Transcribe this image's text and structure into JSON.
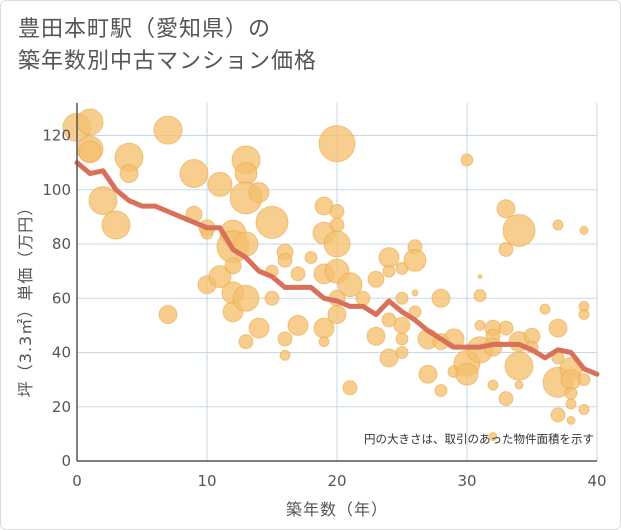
{
  "title_lines": [
    "豊田本町駅（愛知県）の",
    "築年数別中古マンション価格"
  ],
  "colors": {
    "bubble_fill": "#f5c06e",
    "bubble_stroke": "#e9a84a",
    "line": "#d9705a",
    "grid": "#c7d7e6",
    "axis": "#555555",
    "text": "#555555"
  },
  "chart_data": {
    "type": "scatter",
    "title": "豊田本町駅（愛知県）の築年数別中古マンション価格",
    "xlabel": "築年数（年）",
    "ylabel": "坪（3.3㎡）単価（万円）",
    "xlim": [
      0,
      40
    ],
    "ylim": [
      0,
      132
    ],
    "xticks": [
      0,
      10,
      20,
      30,
      40
    ],
    "yticks": [
      0,
      20,
      40,
      60,
      80,
      100,
      120
    ],
    "grid": true,
    "annotation": "円の大きさは、取引のあった物件面積を示す",
    "bubbles": [
      {
        "x": 0,
        "y": 123,
        "s": 14
      },
      {
        "x": 1,
        "y": 125,
        "s": 13
      },
      {
        "x": 1,
        "y": 115,
        "s": 13
      },
      {
        "x": 1,
        "y": 114,
        "s": 11
      },
      {
        "x": 2,
        "y": 96,
        "s": 14
      },
      {
        "x": 3,
        "y": 87,
        "s": 14
      },
      {
        "x": 4,
        "y": 112,
        "s": 14
      },
      {
        "x": 4,
        "y": 106,
        "s": 9
      },
      {
        "x": 7,
        "y": 122,
        "s": 14
      },
      {
        "x": 7,
        "y": 54,
        "s": 9
      },
      {
        "x": 9,
        "y": 106,
        "s": 14
      },
      {
        "x": 9,
        "y": 91,
        "s": 8
      },
      {
        "x": 10,
        "y": 86,
        "s": 8
      },
      {
        "x": 10,
        "y": 84,
        "s": 6
      },
      {
        "x": 10,
        "y": 65,
        "s": 9
      },
      {
        "x": 11,
        "y": 102,
        "s": 12
      },
      {
        "x": 11,
        "y": 68,
        "s": 11
      },
      {
        "x": 12,
        "y": 84,
        "s": 13
      },
      {
        "x": 12,
        "y": 79,
        "s": 16
      },
      {
        "x": 12,
        "y": 72,
        "s": 8
      },
      {
        "x": 12,
        "y": 62,
        "s": 11
      },
      {
        "x": 12,
        "y": 55,
        "s": 10
      },
      {
        "x": 13,
        "y": 111,
        "s": 14
      },
      {
        "x": 13,
        "y": 106,
        "s": 11
      },
      {
        "x": 13,
        "y": 97,
        "s": 16
      },
      {
        "x": 13,
        "y": 80,
        "s": 12
      },
      {
        "x": 13,
        "y": 60,
        "s": 13
      },
      {
        "x": 13,
        "y": 44,
        "s": 7
      },
      {
        "x": 14,
        "y": 99,
        "s": 10
      },
      {
        "x": 14,
        "y": 49,
        "s": 10
      },
      {
        "x": 15,
        "y": 88,
        "s": 16
      },
      {
        "x": 15,
        "y": 70,
        "s": 6
      },
      {
        "x": 15,
        "y": 60,
        "s": 7
      },
      {
        "x": 16,
        "y": 77,
        "s": 8
      },
      {
        "x": 16,
        "y": 74,
        "s": 7
      },
      {
        "x": 16,
        "y": 45,
        "s": 7
      },
      {
        "x": 16,
        "y": 39,
        "s": 5
      },
      {
        "x": 17,
        "y": 69,
        "s": 7
      },
      {
        "x": 17,
        "y": 50,
        "s": 10
      },
      {
        "x": 18,
        "y": 75,
        "s": 6
      },
      {
        "x": 19,
        "y": 94,
        "s": 9
      },
      {
        "x": 19,
        "y": 84,
        "s": 11
      },
      {
        "x": 19,
        "y": 69,
        "s": 10
      },
      {
        "x": 19,
        "y": 49,
        "s": 10
      },
      {
        "x": 19,
        "y": 44,
        "s": 5
      },
      {
        "x": 20,
        "y": 117,
        "s": 18
      },
      {
        "x": 20,
        "y": 92,
        "s": 7
      },
      {
        "x": 20,
        "y": 87,
        "s": 7
      },
      {
        "x": 20,
        "y": 80,
        "s": 13
      },
      {
        "x": 20,
        "y": 70,
        "s": 12
      },
      {
        "x": 20,
        "y": 60,
        "s": 8
      },
      {
        "x": 20,
        "y": 54,
        "s": 9
      },
      {
        "x": 21,
        "y": 65,
        "s": 12
      },
      {
        "x": 21,
        "y": 27,
        "s": 7
      },
      {
        "x": 22,
        "y": 60,
        "s": 7
      },
      {
        "x": 23,
        "y": 67,
        "s": 8
      },
      {
        "x": 23,
        "y": 46,
        "s": 9
      },
      {
        "x": 24,
        "y": 75,
        "s": 10
      },
      {
        "x": 24,
        "y": 70,
        "s": 6
      },
      {
        "x": 24,
        "y": 52,
        "s": 7
      },
      {
        "x": 24,
        "y": 38,
        "s": 9
      },
      {
        "x": 25,
        "y": 71,
        "s": 6
      },
      {
        "x": 25,
        "y": 60,
        "s": 6
      },
      {
        "x": 25,
        "y": 50,
        "s": 8
      },
      {
        "x": 25,
        "y": 45,
        "s": 6
      },
      {
        "x": 25,
        "y": 40,
        "s": 6
      },
      {
        "x": 26,
        "y": 79,
        "s": 7
      },
      {
        "x": 26,
        "y": 74,
        "s": 11
      },
      {
        "x": 26,
        "y": 62,
        "s": 3
      },
      {
        "x": 26,
        "y": 55,
        "s": 6
      },
      {
        "x": 27,
        "y": 45,
        "s": 10
      },
      {
        "x": 27,
        "y": 32,
        "s": 9
      },
      {
        "x": 28,
        "y": 60,
        "s": 9
      },
      {
        "x": 28,
        "y": 44,
        "s": 8
      },
      {
        "x": 28,
        "y": 26,
        "s": 6
      },
      {
        "x": 29,
        "y": 45,
        "s": 10
      },
      {
        "x": 29,
        "y": 33,
        "s": 6
      },
      {
        "x": 30,
        "y": 111,
        "s": 6
      },
      {
        "x": 30,
        "y": 36,
        "s": 13
      },
      {
        "x": 30,
        "y": 32,
        "s": 11
      },
      {
        "x": 31,
        "y": 61,
        "s": 6
      },
      {
        "x": 31,
        "y": 68,
        "s": 2
      },
      {
        "x": 31,
        "y": 50,
        "s": 5
      },
      {
        "x": 31,
        "y": 41,
        "s": 13
      },
      {
        "x": 32,
        "y": 49,
        "s": 8
      },
      {
        "x": 32,
        "y": 46,
        "s": 7
      },
      {
        "x": 32,
        "y": 42,
        "s": 9
      },
      {
        "x": 32,
        "y": 28,
        "s": 5
      },
      {
        "x": 32,
        "y": 9,
        "s": 4
      },
      {
        "x": 33,
        "y": 93,
        "s": 9
      },
      {
        "x": 33,
        "y": 78,
        "s": 7
      },
      {
        "x": 33,
        "y": 49,
        "s": 7
      },
      {
        "x": 33,
        "y": 23,
        "s": 7
      },
      {
        "x": 34,
        "y": 85,
        "s": 16
      },
      {
        "x": 34,
        "y": 44,
        "s": 10
      },
      {
        "x": 34,
        "y": 35,
        "s": 14
      },
      {
        "x": 34,
        "y": 28,
        "s": 4
      },
      {
        "x": 35,
        "y": 46,
        "s": 8
      },
      {
        "x": 35,
        "y": 42,
        "s": 6
      },
      {
        "x": 36,
        "y": 56,
        "s": 5
      },
      {
        "x": 37,
        "y": 87,
        "s": 5
      },
      {
        "x": 37,
        "y": 49,
        "s": 9
      },
      {
        "x": 37,
        "y": 38,
        "s": 6
      },
      {
        "x": 37,
        "y": 29,
        "s": 15
      },
      {
        "x": 37,
        "y": 17,
        "s": 7
      },
      {
        "x": 38,
        "y": 34,
        "s": 11
      },
      {
        "x": 38,
        "y": 30,
        "s": 10
      },
      {
        "x": 38,
        "y": 25,
        "s": 6
      },
      {
        "x": 38,
        "y": 21,
        "s": 5
      },
      {
        "x": 38,
        "y": 15,
        "s": 4
      },
      {
        "x": 39,
        "y": 85,
        "s": 4
      },
      {
        "x": 39,
        "y": 57,
        "s": 5
      },
      {
        "x": 39,
        "y": 54,
        "s": 5
      },
      {
        "x": 39,
        "y": 30,
        "s": 6
      },
      {
        "x": 39,
        "y": 19,
        "s": 5
      }
    ],
    "trend": {
      "x": [
        0,
        1,
        2,
        3,
        4,
        5,
        6,
        7,
        8,
        9,
        10,
        11,
        12,
        13,
        14,
        15,
        16,
        17,
        18,
        19,
        20,
        21,
        22,
        23,
        24,
        25,
        26,
        27,
        28,
        29,
        30,
        31,
        32,
        33,
        34,
        35,
        36,
        37,
        38,
        39,
        40
      ],
      "y": [
        110,
        106,
        107,
        100,
        96,
        94,
        94,
        92,
        90,
        88,
        86,
        86,
        78,
        75,
        70,
        68,
        64,
        64,
        64,
        60,
        59,
        57,
        57,
        54,
        59,
        55,
        52,
        48,
        45,
        42,
        42,
        42,
        43,
        43,
        43,
        41,
        38,
        41,
        40,
        34,
        32
      ]
    }
  }
}
